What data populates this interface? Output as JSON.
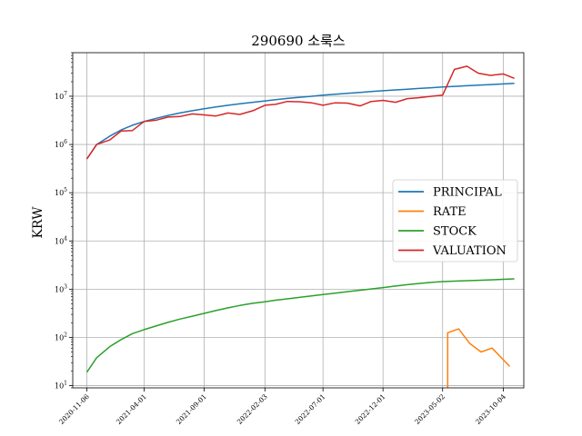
{
  "chart_data": {
    "type": "line",
    "title": "290690 소룩스",
    "xlabel": "",
    "ylabel": "KRW",
    "yscale": "log",
    "ylim": [
      9,
      80000000
    ],
    "xlim": [
      "2020-10-01",
      "2023-11-25"
    ],
    "grid": true,
    "legend_position": "center-right",
    "x_ticks": [
      "2020-11-06",
      "2021-04-01",
      "2021-09-01",
      "2022-02-03",
      "2022-07-01",
      "2022-12-01",
      "2023-05-02",
      "2023-10-04"
    ],
    "y_ticks": [
      "10^1",
      "10^2",
      "10^3",
      "10^4",
      "10^5",
      "10^6",
      "10^7"
    ],
    "series": [
      {
        "name": "PRINCIPAL",
        "color": "#1f77b4",
        "points": [
          [
            "2020-11-06",
            500000
          ],
          [
            "2020-12-01",
            1000000
          ],
          [
            "2021-01-04",
            1500000
          ],
          [
            "2021-02-01",
            2000000
          ],
          [
            "2021-03-02",
            2500000
          ],
          [
            "2021-04-01",
            3000000
          ],
          [
            "2021-05-03",
            3500000
          ],
          [
            "2021-06-01",
            4000000
          ],
          [
            "2021-07-01",
            4500000
          ],
          [
            "2021-08-02",
            5000000
          ],
          [
            "2021-09-01",
            5500000
          ],
          [
            "2021-10-01",
            6000000
          ],
          [
            "2021-11-01",
            6500000
          ],
          [
            "2021-12-01",
            7000000
          ],
          [
            "2022-01-03",
            7500000
          ],
          [
            "2022-02-03",
            8000000
          ],
          [
            "2022-03-02",
            8500000
          ],
          [
            "2022-04-01",
            9000000
          ],
          [
            "2022-05-02",
            9500000
          ],
          [
            "2022-06-02",
            10000000
          ],
          [
            "2022-07-01",
            10500000
          ],
          [
            "2022-08-01",
            11000000
          ],
          [
            "2022-09-01",
            11500000
          ],
          [
            "2022-10-04",
            12000000
          ],
          [
            "2022-11-01",
            12500000
          ],
          [
            "2022-12-01",
            13000000
          ],
          [
            "2023-01-02",
            13500000
          ],
          [
            "2023-02-01",
            14000000
          ],
          [
            "2023-03-02",
            14500000
          ],
          [
            "2023-04-03",
            15000000
          ],
          [
            "2023-05-02",
            15500000
          ],
          [
            "2023-06-01",
            16000000
          ],
          [
            "2023-07-03",
            16500000
          ],
          [
            "2023-08-01",
            17000000
          ],
          [
            "2023-09-01",
            17500000
          ],
          [
            "2023-10-04",
            18000000
          ],
          [
            "2023-11-01",
            18500000
          ]
        ]
      },
      {
        "name": "RATE",
        "color": "#ff7f0e",
        "points": [
          [
            "2023-05-15",
            5
          ],
          [
            "2023-05-15",
            125
          ],
          [
            "2023-06-12",
            150
          ],
          [
            "2023-07-10",
            75
          ],
          [
            "2023-08-08",
            50
          ],
          [
            "2023-09-05",
            60
          ],
          [
            "2023-10-20",
            25
          ]
        ]
      },
      {
        "name": "STOCK",
        "color": "#2ca02c",
        "points": [
          [
            "2020-11-06",
            19
          ],
          [
            "2020-12-01",
            38
          ],
          [
            "2021-01-04",
            65
          ],
          [
            "2021-02-01",
            90
          ],
          [
            "2021-03-02",
            120
          ],
          [
            "2021-04-01",
            145
          ],
          [
            "2021-05-03",
            175
          ],
          [
            "2021-06-01",
            205
          ],
          [
            "2021-07-01",
            240
          ],
          [
            "2021-08-02",
            275
          ],
          [
            "2021-09-01",
            315
          ],
          [
            "2021-10-01",
            360
          ],
          [
            "2021-11-01",
            410
          ],
          [
            "2021-12-01",
            460
          ],
          [
            "2022-01-03",
            510
          ],
          [
            "2022-02-03",
            550
          ],
          [
            "2022-03-02",
            590
          ],
          [
            "2022-04-01",
            630
          ],
          [
            "2022-05-02",
            675
          ],
          [
            "2022-06-02",
            725
          ],
          [
            "2022-07-01",
            775
          ],
          [
            "2022-08-01",
            830
          ],
          [
            "2022-09-01",
            890
          ],
          [
            "2022-10-04",
            950
          ],
          [
            "2022-11-01",
            1010
          ],
          [
            "2022-12-01",
            1080
          ],
          [
            "2023-01-02",
            1160
          ],
          [
            "2023-02-01",
            1240
          ],
          [
            "2023-03-02",
            1310
          ],
          [
            "2023-04-03",
            1380
          ],
          [
            "2023-05-02",
            1440
          ],
          [
            "2023-06-01",
            1470
          ],
          [
            "2023-07-03",
            1500
          ],
          [
            "2023-08-01",
            1530
          ],
          [
            "2023-09-01",
            1560
          ],
          [
            "2023-10-04",
            1600
          ],
          [
            "2023-11-01",
            1640
          ]
        ]
      },
      {
        "name": "VALUATION",
        "color": "#d62728",
        "points": [
          [
            "2020-11-06",
            500000
          ],
          [
            "2020-12-01",
            1000000
          ],
          [
            "2021-01-04",
            1250000
          ],
          [
            "2021-02-01",
            1900000
          ],
          [
            "2021-03-02",
            1950000
          ],
          [
            "2021-04-01",
            3000000
          ],
          [
            "2021-05-03",
            3200000
          ],
          [
            "2021-06-01",
            3700000
          ],
          [
            "2021-07-01",
            3800000
          ],
          [
            "2021-08-02",
            4300000
          ],
          [
            "2021-09-01",
            4100000
          ],
          [
            "2021-10-01",
            3900000
          ],
          [
            "2021-11-01",
            4500000
          ],
          [
            "2021-12-01",
            4200000
          ],
          [
            "2022-01-03",
            5000000
          ],
          [
            "2022-02-03",
            6500000
          ],
          [
            "2022-03-02",
            6800000
          ],
          [
            "2022-04-01",
            7800000
          ],
          [
            "2022-05-02",
            7700000
          ],
          [
            "2022-06-02",
            7300000
          ],
          [
            "2022-07-01",
            6500000
          ],
          [
            "2022-08-01",
            7300000
          ],
          [
            "2022-09-01",
            7200000
          ],
          [
            "2022-10-04",
            6300000
          ],
          [
            "2022-11-01",
            7800000
          ],
          [
            "2022-12-01",
            8200000
          ],
          [
            "2023-01-02",
            7500000
          ],
          [
            "2023-02-01",
            8900000
          ],
          [
            "2023-03-02",
            9300000
          ],
          [
            "2023-04-03",
            10000000
          ],
          [
            "2023-05-02",
            10500000
          ],
          [
            "2023-06-01",
            36000000
          ],
          [
            "2023-07-03",
            42000000
          ],
          [
            "2023-08-01",
            30000000
          ],
          [
            "2023-09-01",
            27000000
          ],
          [
            "2023-10-04",
            29000000
          ],
          [
            "2023-11-01",
            23500000
          ]
        ]
      }
    ]
  }
}
